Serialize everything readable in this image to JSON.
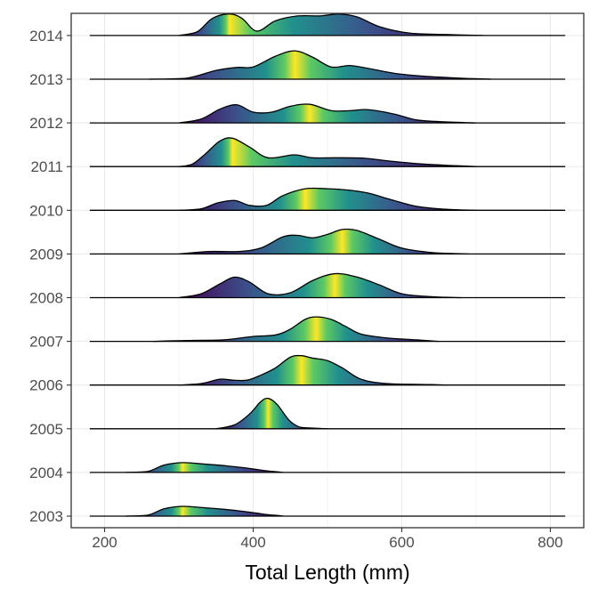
{
  "chart_data": {
    "type": "ridgeline",
    "xlabel": "Total Length (mm)",
    "ylabel": "",
    "x_ticks": [
      200,
      400,
      600,
      800
    ],
    "xlim": [
      155,
      845
    ],
    "baseline_range": [
      180,
      820
    ],
    "grid": true,
    "fill_colors": [
      "#440154",
      "#3b528b",
      "#21908d",
      "#5dc963",
      "#fde725"
    ],
    "series": [
      {
        "name": "2003",
        "density": [
          [
            228,
            0.0
          ],
          [
            258,
            0.02
          ],
          [
            280,
            0.15
          ],
          [
            305,
            0.2
          ],
          [
            335,
            0.17
          ],
          [
            360,
            0.14
          ],
          [
            385,
            0.1
          ],
          [
            405,
            0.06
          ],
          [
            420,
            0.03
          ],
          [
            435,
            0.01
          ],
          [
            440,
            0.0
          ]
        ]
      },
      {
        "name": "2004",
        "density": [
          [
            228,
            0.0
          ],
          [
            258,
            0.02
          ],
          [
            280,
            0.15
          ],
          [
            305,
            0.2
          ],
          [
            335,
            0.17
          ],
          [
            360,
            0.14
          ],
          [
            385,
            0.1
          ],
          [
            405,
            0.06
          ],
          [
            420,
            0.03
          ],
          [
            435,
            0.01
          ],
          [
            440,
            0.0
          ]
        ]
      },
      {
        "name": "2005",
        "density": [
          [
            350,
            0.0
          ],
          [
            375,
            0.08
          ],
          [
            395,
            0.3
          ],
          [
            410,
            0.55
          ],
          [
            420,
            0.62
          ],
          [
            432,
            0.5
          ],
          [
            448,
            0.18
          ],
          [
            460,
            0.05
          ],
          [
            470,
            0.02
          ],
          [
            500,
            0.0
          ]
        ]
      },
      {
        "name": "2006",
        "density": [
          [
            300,
            0.0
          ],
          [
            330,
            0.03
          ],
          [
            355,
            0.12
          ],
          [
            372,
            0.1
          ],
          [
            392,
            0.1
          ],
          [
            410,
            0.2
          ],
          [
            430,
            0.35
          ],
          [
            450,
            0.57
          ],
          [
            465,
            0.6
          ],
          [
            480,
            0.55
          ],
          [
            500,
            0.5
          ],
          [
            520,
            0.35
          ],
          [
            545,
            0.12
          ],
          [
            580,
            0.03
          ],
          [
            640,
            0.01
          ],
          [
            660,
            0.0
          ]
        ]
      },
      {
        "name": "2007",
        "density": [
          [
            265,
            0.0
          ],
          [
            290,
            0.01
          ],
          [
            320,
            0.02
          ],
          [
            360,
            0.03
          ],
          [
            400,
            0.1
          ],
          [
            430,
            0.13
          ],
          [
            450,
            0.25
          ],
          [
            470,
            0.45
          ],
          [
            485,
            0.5
          ],
          [
            505,
            0.45
          ],
          [
            525,
            0.3
          ],
          [
            545,
            0.15
          ],
          [
            580,
            0.07
          ],
          [
            620,
            0.03
          ],
          [
            650,
            0.0
          ]
        ]
      },
      {
        "name": "2008",
        "density": [
          [
            300,
            0.0
          ],
          [
            330,
            0.08
          ],
          [
            355,
            0.28
          ],
          [
            375,
            0.42
          ],
          [
            395,
            0.32
          ],
          [
            420,
            0.08
          ],
          [
            450,
            0.1
          ],
          [
            480,
            0.35
          ],
          [
            510,
            0.49
          ],
          [
            540,
            0.42
          ],
          [
            570,
            0.26
          ],
          [
            600,
            0.08
          ],
          [
            640,
            0.02
          ],
          [
            680,
            0.0
          ]
        ]
      },
      {
        "name": "2009",
        "density": [
          [
            300,
            0.0
          ],
          [
            340,
            0.05
          ],
          [
            380,
            0.05
          ],
          [
            410,
            0.12
          ],
          [
            440,
            0.35
          ],
          [
            460,
            0.38
          ],
          [
            480,
            0.33
          ],
          [
            500,
            0.4
          ],
          [
            520,
            0.5
          ],
          [
            540,
            0.48
          ],
          [
            570,
            0.3
          ],
          [
            600,
            0.12
          ],
          [
            640,
            0.03
          ],
          [
            690,
            0.0
          ]
        ]
      },
      {
        "name": "2010",
        "density": [
          [
            300,
            0.0
          ],
          [
            330,
            0.03
          ],
          [
            352,
            0.15
          ],
          [
            375,
            0.2
          ],
          [
            395,
            0.1
          ],
          [
            418,
            0.1
          ],
          [
            440,
            0.3
          ],
          [
            470,
            0.44
          ],
          [
            500,
            0.44
          ],
          [
            530,
            0.41
          ],
          [
            555,
            0.35
          ],
          [
            585,
            0.22
          ],
          [
            620,
            0.08
          ],
          [
            660,
            0.02
          ],
          [
            700,
            0.0
          ]
        ]
      },
      {
        "name": "2011",
        "density": [
          [
            300,
            0.0
          ],
          [
            318,
            0.05
          ],
          [
            335,
            0.25
          ],
          [
            355,
            0.52
          ],
          [
            372,
            0.58
          ],
          [
            395,
            0.4
          ],
          [
            420,
            0.18
          ],
          [
            455,
            0.24
          ],
          [
            480,
            0.18
          ],
          [
            510,
            0.18
          ],
          [
            550,
            0.17
          ],
          [
            585,
            0.11
          ],
          [
            630,
            0.05
          ],
          [
            670,
            0.02
          ],
          [
            700,
            0.0
          ]
        ]
      },
      {
        "name": "2012",
        "density": [
          [
            300,
            0.0
          ],
          [
            330,
            0.08
          ],
          [
            355,
            0.28
          ],
          [
            378,
            0.37
          ],
          [
            400,
            0.22
          ],
          [
            425,
            0.22
          ],
          [
            450,
            0.34
          ],
          [
            476,
            0.38
          ],
          [
            505,
            0.25
          ],
          [
            530,
            0.25
          ],
          [
            555,
            0.27
          ],
          [
            590,
            0.18
          ],
          [
            620,
            0.06
          ],
          [
            660,
            0.02
          ],
          [
            700,
            0.0
          ]
        ]
      },
      {
        "name": "2013",
        "density": [
          [
            260,
            0.0
          ],
          [
            310,
            0.02
          ],
          [
            350,
            0.18
          ],
          [
            378,
            0.24
          ],
          [
            400,
            0.25
          ],
          [
            430,
            0.47
          ],
          [
            456,
            0.58
          ],
          [
            480,
            0.45
          ],
          [
            505,
            0.25
          ],
          [
            530,
            0.28
          ],
          [
            555,
            0.22
          ],
          [
            590,
            0.12
          ],
          [
            630,
            0.06
          ],
          [
            680,
            0.02
          ],
          [
            720,
            0.0
          ]
        ]
      },
      {
        "name": "2014",
        "density": [
          [
            300,
            0.0
          ],
          [
            325,
            0.08
          ],
          [
            345,
            0.35
          ],
          [
            368,
            0.44
          ],
          [
            385,
            0.35
          ],
          [
            405,
            0.09
          ],
          [
            430,
            0.3
          ],
          [
            460,
            0.4
          ],
          [
            490,
            0.4
          ],
          [
            515,
            0.44
          ],
          [
            540,
            0.38
          ],
          [
            570,
            0.18
          ],
          [
            610,
            0.05
          ],
          [
            660,
            0.02
          ],
          [
            710,
            0.0
          ]
        ]
      }
    ]
  }
}
